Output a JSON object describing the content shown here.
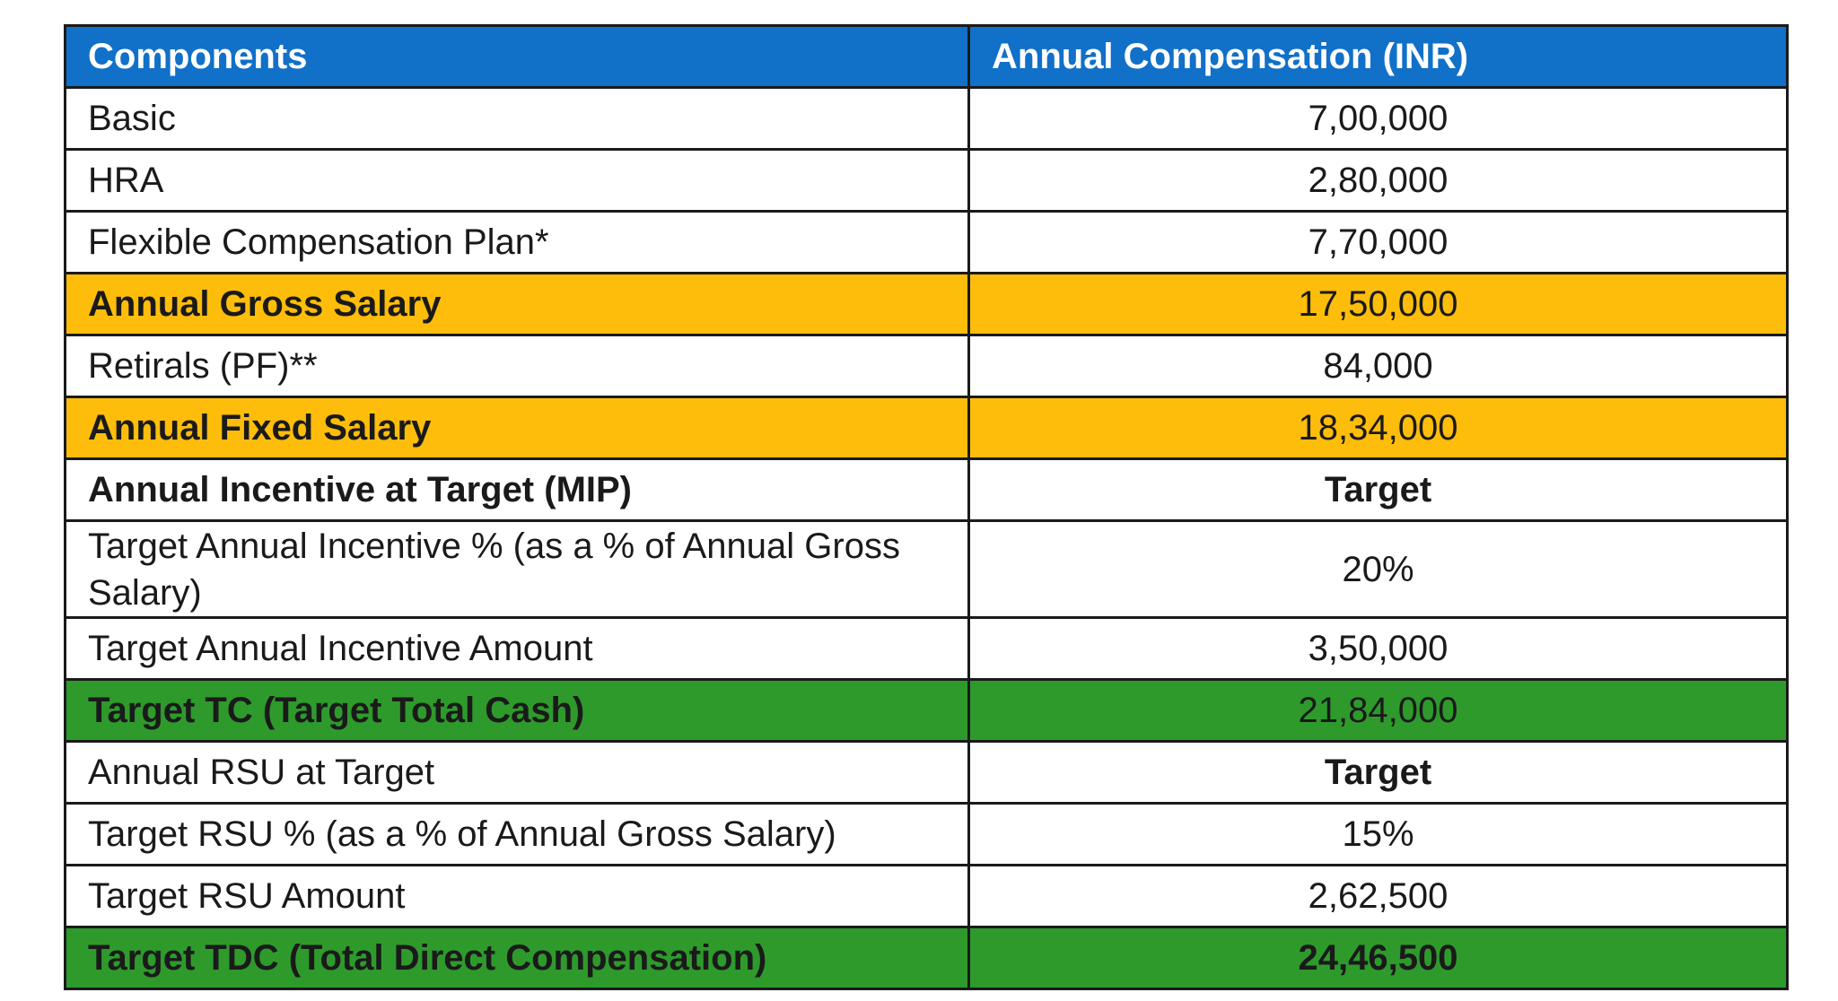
{
  "table": {
    "headers": [
      "Components",
      "Annual Compensation (INR)"
    ],
    "rows": [
      {
        "component": "Basic",
        "value": "7,00,000",
        "style": "normal",
        "label_bold": false,
        "value_bold": false
      },
      {
        "component": "HRA",
        "value": "2,80,000",
        "style": "normal",
        "label_bold": false,
        "value_bold": false
      },
      {
        "component": "Flexible Compensation Plan*",
        "value": "7,70,000",
        "style": "normal",
        "label_bold": false,
        "value_bold": false
      },
      {
        "component": "Annual Gross Salary",
        "value": "17,50,000",
        "style": "orange",
        "label_bold": true,
        "value_bold": false
      },
      {
        "component": "Retirals (PF)**",
        "value": "84,000",
        "style": "normal",
        "label_bold": false,
        "value_bold": false
      },
      {
        "component": "Annual Fixed Salary",
        "value": "18,34,000",
        "style": "orange",
        "label_bold": true,
        "value_bold": false
      },
      {
        "component": "Annual Incentive at Target (MIP)",
        "value": "Target",
        "style": "normal",
        "label_bold": true,
        "value_bold": true
      },
      {
        "component": "Target Annual Incentive % (as a % of Annual Gross Salary)",
        "value": "20%",
        "style": "normal",
        "label_bold": false,
        "value_bold": false
      },
      {
        "component": "Target Annual Incentive Amount",
        "value": "3,50,000",
        "style": "normal",
        "label_bold": false,
        "value_bold": false
      },
      {
        "component": "Target TC (Target Total Cash)",
        "value": "21,84,000",
        "style": "green",
        "label_bold": true,
        "value_bold": false
      },
      {
        "component": "Annual RSU at Target",
        "value": "Target",
        "style": "normal",
        "label_bold": false,
        "value_bold": true
      },
      {
        "component": "Target RSU % (as a % of Annual Gross Salary)",
        "value": "15%",
        "style": "normal",
        "label_bold": false,
        "value_bold": false
      },
      {
        "component": "Target RSU Amount",
        "value": "2,62,500",
        "style": "normal",
        "label_bold": false,
        "value_bold": false
      },
      {
        "component": "Target TDC (Total Direct Compensation)",
        "value": "24,46,500",
        "style": "green",
        "label_bold": true,
        "value_bold": true
      }
    ]
  },
  "colors": {
    "header_bg": "#1170c8",
    "header_text": "#ffffff",
    "highlight_orange": "#fdbd0a",
    "highlight_green": "#2e9a2c",
    "border": "#1a1a1a"
  }
}
